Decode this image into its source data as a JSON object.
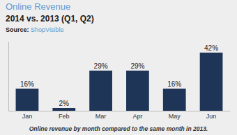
{
  "chart_data": {
    "type": "bar",
    "title": "Online Revenue",
    "subtitle": "2014 vs. 2013 (Q1, Q2)",
    "annotations": [
      "Source: ",
      "ShopVisible",
      "Online revenue by month compared to the same month in 2013."
    ],
    "categories": [
      "Jan",
      "Feb",
      "Mar",
      "Apr",
      "May",
      "Jun"
    ],
    "values": [
      16,
      2,
      29,
      29,
      16,
      42
    ],
    "value_labels": [
      "16%",
      "2%",
      "29%",
      "29%",
      "16%",
      "42%"
    ],
    "data_labels": true,
    "color": "#1e3557",
    "ylim": [
      0,
      50
    ],
    "grid": false,
    "tick_labels": "x"
  }
}
